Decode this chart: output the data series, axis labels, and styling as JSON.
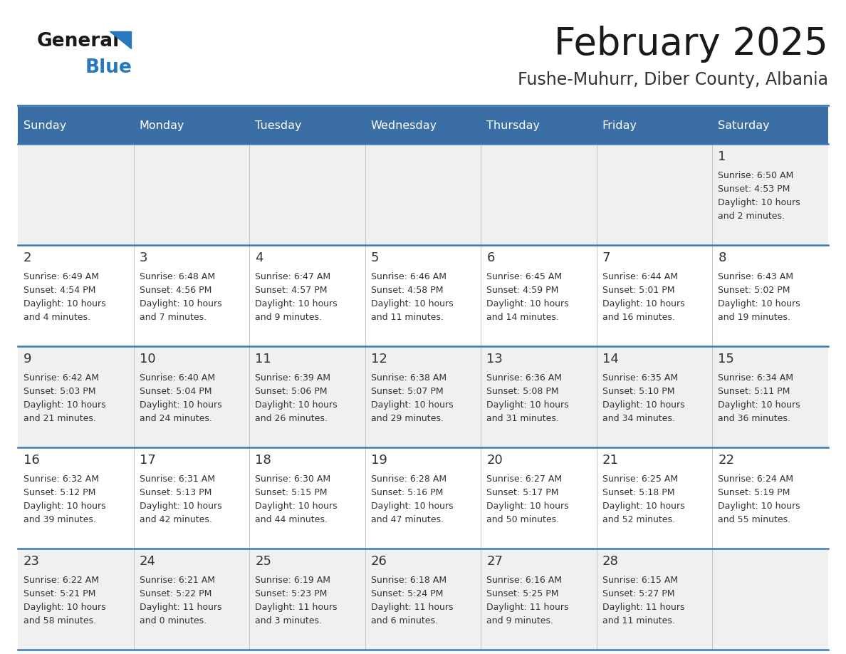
{
  "title": "February 2025",
  "subtitle": "Fushe-Muhurr, Diber County, Albania",
  "header_bg": "#3a6ea5",
  "header_text": "#ffffff",
  "row_bg_odd": "#f0f0f0",
  "row_bg_even": "#ffffff",
  "border_color": "#3a7ab5",
  "day_headers": [
    "Sunday",
    "Monday",
    "Tuesday",
    "Wednesday",
    "Thursday",
    "Friday",
    "Saturday"
  ],
  "title_color": "#1a1a1a",
  "subtitle_color": "#333333",
  "day_num_color": "#333333",
  "info_color": "#333333",
  "calendar": [
    [
      {
        "day": "",
        "sunrise": "",
        "sunset": "",
        "daylight": ""
      },
      {
        "day": "",
        "sunrise": "",
        "sunset": "",
        "daylight": ""
      },
      {
        "day": "",
        "sunrise": "",
        "sunset": "",
        "daylight": ""
      },
      {
        "day": "",
        "sunrise": "",
        "sunset": "",
        "daylight": ""
      },
      {
        "day": "",
        "sunrise": "",
        "sunset": "",
        "daylight": ""
      },
      {
        "day": "",
        "sunrise": "",
        "sunset": "",
        "daylight": ""
      },
      {
        "day": "1",
        "sunrise": "6:50 AM",
        "sunset": "4:53 PM",
        "daylight_line1": "Daylight: 10 hours",
        "daylight_line2": "and 2 minutes."
      }
    ],
    [
      {
        "day": "2",
        "sunrise": "6:49 AM",
        "sunset": "4:54 PM",
        "daylight_line1": "Daylight: 10 hours",
        "daylight_line2": "and 4 minutes."
      },
      {
        "day": "3",
        "sunrise": "6:48 AM",
        "sunset": "4:56 PM",
        "daylight_line1": "Daylight: 10 hours",
        "daylight_line2": "and 7 minutes."
      },
      {
        "day": "4",
        "sunrise": "6:47 AM",
        "sunset": "4:57 PM",
        "daylight_line1": "Daylight: 10 hours",
        "daylight_line2": "and 9 minutes."
      },
      {
        "day": "5",
        "sunrise": "6:46 AM",
        "sunset": "4:58 PM",
        "daylight_line1": "Daylight: 10 hours",
        "daylight_line2": "and 11 minutes."
      },
      {
        "day": "6",
        "sunrise": "6:45 AM",
        "sunset": "4:59 PM",
        "daylight_line1": "Daylight: 10 hours",
        "daylight_line2": "and 14 minutes."
      },
      {
        "day": "7",
        "sunrise": "6:44 AM",
        "sunset": "5:01 PM",
        "daylight_line1": "Daylight: 10 hours",
        "daylight_line2": "and 16 minutes."
      },
      {
        "day": "8",
        "sunrise": "6:43 AM",
        "sunset": "5:02 PM",
        "daylight_line1": "Daylight: 10 hours",
        "daylight_line2": "and 19 minutes."
      }
    ],
    [
      {
        "day": "9",
        "sunrise": "6:42 AM",
        "sunset": "5:03 PM",
        "daylight_line1": "Daylight: 10 hours",
        "daylight_line2": "and 21 minutes."
      },
      {
        "day": "10",
        "sunrise": "6:40 AM",
        "sunset": "5:04 PM",
        "daylight_line1": "Daylight: 10 hours",
        "daylight_line2": "and 24 minutes."
      },
      {
        "day": "11",
        "sunrise": "6:39 AM",
        "sunset": "5:06 PM",
        "daylight_line1": "Daylight: 10 hours",
        "daylight_line2": "and 26 minutes."
      },
      {
        "day": "12",
        "sunrise": "6:38 AM",
        "sunset": "5:07 PM",
        "daylight_line1": "Daylight: 10 hours",
        "daylight_line2": "and 29 minutes."
      },
      {
        "day": "13",
        "sunrise": "6:36 AM",
        "sunset": "5:08 PM",
        "daylight_line1": "Daylight: 10 hours",
        "daylight_line2": "and 31 minutes."
      },
      {
        "day": "14",
        "sunrise": "6:35 AM",
        "sunset": "5:10 PM",
        "daylight_line1": "Daylight: 10 hours",
        "daylight_line2": "and 34 minutes."
      },
      {
        "day": "15",
        "sunrise": "6:34 AM",
        "sunset": "5:11 PM",
        "daylight_line1": "Daylight: 10 hours",
        "daylight_line2": "and 36 minutes."
      }
    ],
    [
      {
        "day": "16",
        "sunrise": "6:32 AM",
        "sunset": "5:12 PM",
        "daylight_line1": "Daylight: 10 hours",
        "daylight_line2": "and 39 minutes."
      },
      {
        "day": "17",
        "sunrise": "6:31 AM",
        "sunset": "5:13 PM",
        "daylight_line1": "Daylight: 10 hours",
        "daylight_line2": "and 42 minutes."
      },
      {
        "day": "18",
        "sunrise": "6:30 AM",
        "sunset": "5:15 PM",
        "daylight_line1": "Daylight: 10 hours",
        "daylight_line2": "and 44 minutes."
      },
      {
        "day": "19",
        "sunrise": "6:28 AM",
        "sunset": "5:16 PM",
        "daylight_line1": "Daylight: 10 hours",
        "daylight_line2": "and 47 minutes."
      },
      {
        "day": "20",
        "sunrise": "6:27 AM",
        "sunset": "5:17 PM",
        "daylight_line1": "Daylight: 10 hours",
        "daylight_line2": "and 50 minutes."
      },
      {
        "day": "21",
        "sunrise": "6:25 AM",
        "sunset": "5:18 PM",
        "daylight_line1": "Daylight: 10 hours",
        "daylight_line2": "and 52 minutes."
      },
      {
        "day": "22",
        "sunrise": "6:24 AM",
        "sunset": "5:19 PM",
        "daylight_line1": "Daylight: 10 hours",
        "daylight_line2": "and 55 minutes."
      }
    ],
    [
      {
        "day": "23",
        "sunrise": "6:22 AM",
        "sunset": "5:21 PM",
        "daylight_line1": "Daylight: 10 hours",
        "daylight_line2": "and 58 minutes."
      },
      {
        "day": "24",
        "sunrise": "6:21 AM",
        "sunset": "5:22 PM",
        "daylight_line1": "Daylight: 11 hours",
        "daylight_line2": "and 0 minutes."
      },
      {
        "day": "25",
        "sunrise": "6:19 AM",
        "sunset": "5:23 PM",
        "daylight_line1": "Daylight: 11 hours",
        "daylight_line2": "and 3 minutes."
      },
      {
        "day": "26",
        "sunrise": "6:18 AM",
        "sunset": "5:24 PM",
        "daylight_line1": "Daylight: 11 hours",
        "daylight_line2": "and 6 minutes."
      },
      {
        "day": "27",
        "sunrise": "6:16 AM",
        "sunset": "5:25 PM",
        "daylight_line1": "Daylight: 11 hours",
        "daylight_line2": "and 9 minutes."
      },
      {
        "day": "28",
        "sunrise": "6:15 AM",
        "sunset": "5:27 PM",
        "daylight_line1": "Daylight: 11 hours",
        "daylight_line2": "and 11 minutes."
      },
      {
        "day": "",
        "sunrise": "",
        "sunset": "",
        "daylight_line1": "",
        "daylight_line2": ""
      }
    ]
  ],
  "logo_general_color": "#1a1a1a",
  "logo_blue_color": "#2878be",
  "logo_triangle_color": "#2878be"
}
